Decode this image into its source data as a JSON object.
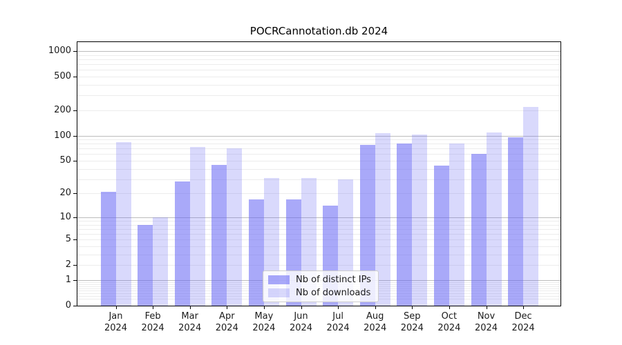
{
  "chart_data": {
    "type": "bar",
    "title": "POCRCannotation.db 2024",
    "categories": [
      "Jan\n2024",
      "Feb\n2024",
      "Mar\n2024",
      "Apr\n2024",
      "May\n2024",
      "Jun\n2024",
      "Jul\n2024",
      "Aug\n2024",
      "Sep\n2024",
      "Oct\n2024",
      "Nov\n2024",
      "Dec\n2024"
    ],
    "series": [
      {
        "name": "Nb of distinct IPs",
        "color": "#6666f4",
        "alpha": 0.56,
        "values": [
          21,
          8,
          28,
          45,
          17,
          17,
          14,
          77,
          81,
          44,
          60,
          95
        ]
      },
      {
        "name": "Nb of downloads",
        "color": "#6666f4",
        "alpha": 0.25,
        "values": [
          84,
          10,
          73,
          70,
          31,
          31,
          30,
          107,
          103,
          80,
          109,
          220
        ]
      }
    ],
    "xlabel": "",
    "ylabel": "",
    "yscale": "log1p",
    "ylim": [
      0,
      1274
    ],
    "yticks": [
      0,
      1,
      2,
      5,
      10,
      20,
      50,
      100,
      200,
      500,
      1000
    ],
    "major_gridlines": [
      1,
      10,
      100,
      1000
    ],
    "grid": true,
    "minor_grid": true,
    "legend_position": "lower center"
  },
  "colors": {
    "major_grid": "#bcbcbc",
    "minor_grid": "#ececec",
    "spine": "#000000",
    "text": "#1a1a1a",
    "background": "#ffffff"
  }
}
